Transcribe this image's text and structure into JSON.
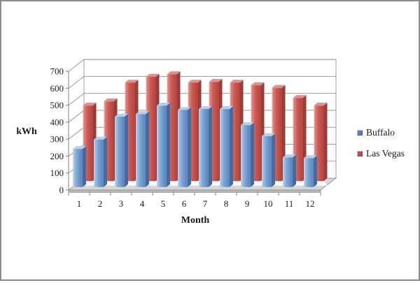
{
  "chart_data": {
    "type": "bar",
    "variant": "3d-clustered-column",
    "title": "",
    "xlabel": "Month",
    "ylabel": "kWh",
    "categories": [
      "1",
      "2",
      "3",
      "4",
      "5",
      "6",
      "7",
      "8",
      "9",
      "10",
      "11",
      "12"
    ],
    "series": [
      {
        "name": "Buffalo",
        "values": [
          225,
          280,
          415,
          430,
          480,
          455,
          460,
          460,
          365,
          300,
          175,
          170
        ],
        "color": "#4f81bd"
      },
      {
        "name": "Las Vegas",
        "values": [
          445,
          470,
          580,
          615,
          630,
          580,
          585,
          580,
          565,
          550,
          490,
          445
        ],
        "color": "#c0504d"
      }
    ],
    "ylim": [
      0,
      700
    ],
    "ytick_step": 100,
    "yticks": [
      "0",
      "100",
      "200",
      "300",
      "400",
      "500",
      "600",
      "700"
    ],
    "grid": true,
    "legend_position": "right"
  },
  "palette": {
    "blue_front_light": "#cedff2",
    "blue_front": "#7ba3d3",
    "blue_front_dark": "#5b86bd",
    "blue_top": "#b9cfe9",
    "blue_side": "#466a9e",
    "red_front_light": "#f0b6b1",
    "red_front": "#cd5a54",
    "red_front_dark": "#b4453f",
    "red_top": "#dc918c",
    "red_side": "#9c3b37",
    "gridline": "#9a9a9a",
    "axis_line": "#808080",
    "floor_top": "#d6d6d6",
    "floor_rim": "#b5b5b5",
    "text": "#1a1a1a",
    "frame_border": "#8c8c8c",
    "background": "#ffffff"
  }
}
